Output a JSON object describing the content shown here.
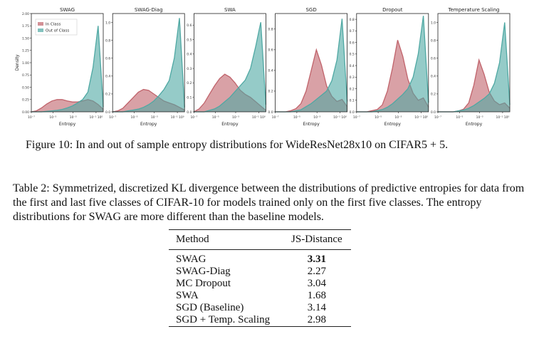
{
  "figure": {
    "caption": "Figure 10: In and out of sample entropy distributions for WideResNet28x10 on CIFAR5 + 5.",
    "colors": {
      "in_class": "#c0636b",
      "out_of_class": "#4fa8a3"
    },
    "legend": {
      "in_class": "In Class",
      "out_of_class": "Out of Class"
    },
    "ylabel": "Density",
    "xlabel": "Entropy",
    "x_ticks": [
      "10⁻⁷",
      "10⁻⁵",
      "10⁻³",
      "10⁻¹ 10⁰"
    ]
  },
  "chart_data": [
    {
      "type": "area",
      "title": "SWAG",
      "ylim": [
        0,
        2.0
      ],
      "y_ticks": [
        "0.00",
        "0.25",
        "0.50",
        "0.75",
        "1.00",
        "1.25",
        "1.50",
        "1.75",
        "2.00"
      ],
      "x": [
        0,
        1,
        2,
        3,
        4,
        5,
        6,
        7,
        8,
        9,
        10,
        11,
        12,
        13,
        14
      ],
      "series": [
        {
          "name": "In Class",
          "values": [
            0.0,
            0.02,
            0.08,
            0.16,
            0.22,
            0.25,
            0.25,
            0.22,
            0.2,
            0.2,
            0.22,
            0.25,
            0.22,
            0.15,
            0.05
          ]
        },
        {
          "name": "Out of Class",
          "values": [
            0.0,
            0.0,
            0.0,
            0.01,
            0.02,
            0.03,
            0.05,
            0.08,
            0.12,
            0.18,
            0.25,
            0.4,
            0.9,
            1.75,
            0.1
          ]
        }
      ]
    },
    {
      "type": "area",
      "title": "SWAG-Diag",
      "ylim": [
        0,
        1.1
      ],
      "y_ticks": [
        "0.0",
        "0.2",
        "0.4",
        "0.6",
        "0.8",
        "1.0"
      ],
      "x": [
        0,
        1,
        2,
        3,
        4,
        5,
        6,
        7,
        8,
        9,
        10,
        11,
        12,
        13,
        14
      ],
      "series": [
        {
          "name": "In Class",
          "values": [
            0.0,
            0.01,
            0.04,
            0.1,
            0.16,
            0.22,
            0.25,
            0.24,
            0.2,
            0.16,
            0.12,
            0.1,
            0.08,
            0.05,
            0.02
          ]
        },
        {
          "name": "Out of Class",
          "values": [
            0.0,
            0.0,
            0.0,
            0.01,
            0.02,
            0.03,
            0.05,
            0.08,
            0.12,
            0.18,
            0.25,
            0.35,
            0.6,
            1.05,
            0.05
          ]
        }
      ]
    },
    {
      "type": "area",
      "title": "SWA",
      "ylim": [
        0,
        0.68
      ],
      "y_ticks": [
        "0.0",
        "0.1",
        "0.2",
        "0.3",
        "0.4",
        "0.5",
        "0.6"
      ],
      "x": [
        0,
        1,
        2,
        3,
        4,
        5,
        6,
        7,
        8,
        9,
        10,
        11,
        12,
        13,
        14
      ],
      "series": [
        {
          "name": "In Class",
          "values": [
            0.0,
            0.02,
            0.06,
            0.12,
            0.18,
            0.23,
            0.26,
            0.24,
            0.2,
            0.15,
            0.12,
            0.1,
            0.07,
            0.04,
            0.01
          ]
        },
        {
          "name": "Out of Class",
          "values": [
            0.0,
            0.0,
            0.0,
            0.01,
            0.02,
            0.04,
            0.07,
            0.1,
            0.14,
            0.18,
            0.22,
            0.3,
            0.45,
            0.62,
            0.05
          ]
        }
      ]
    },
    {
      "type": "area",
      "title": "SGD",
      "ylim": [
        0,
        0.95
      ],
      "y_ticks": [
        "0.0",
        "0.2",
        "0.4",
        "0.6",
        "0.8"
      ],
      "x": [
        0,
        1,
        2,
        3,
        4,
        5,
        6,
        7,
        8,
        9,
        10,
        11,
        12,
        13,
        14
      ],
      "series": [
        {
          "name": "In Class",
          "values": [
            0.0,
            0.0,
            0.0,
            0.01,
            0.03,
            0.08,
            0.2,
            0.4,
            0.6,
            0.45,
            0.25,
            0.15,
            0.1,
            0.12,
            0.05
          ]
        },
        {
          "name": "Out of Class",
          "values": [
            0.0,
            0.0,
            0.0,
            0.0,
            0.01,
            0.02,
            0.05,
            0.08,
            0.12,
            0.16,
            0.2,
            0.3,
            0.5,
            0.9,
            0.1
          ]
        }
      ]
    },
    {
      "type": "area",
      "title": "Dropout",
      "ylim": [
        0,
        0.85
      ],
      "y_ticks": [
        "0.0",
        "0.1",
        "0.2",
        "0.3",
        "0.4",
        "0.5",
        "0.6",
        "0.7",
        "0.8"
      ],
      "x": [
        0,
        1,
        2,
        3,
        4,
        5,
        6,
        7,
        8,
        9,
        10,
        11,
        12,
        13,
        14
      ],
      "series": [
        {
          "name": "In Class",
          "values": [
            0.0,
            0.0,
            0.0,
            0.01,
            0.02,
            0.06,
            0.18,
            0.38,
            0.62,
            0.48,
            0.28,
            0.16,
            0.1,
            0.12,
            0.04
          ]
        },
        {
          "name": "Out of Class",
          "values": [
            0.0,
            0.0,
            0.0,
            0.0,
            0.01,
            0.02,
            0.04,
            0.07,
            0.11,
            0.15,
            0.2,
            0.3,
            0.5,
            0.83,
            0.08
          ]
        }
      ]
    },
    {
      "type": "area",
      "title": "Temperature Scaling",
      "ylim": [
        0,
        1.1
      ],
      "y_ticks": [
        "0.0",
        "0.2",
        "0.4",
        "0.6",
        "0.8",
        "1.0"
      ],
      "x": [
        0,
        1,
        2,
        3,
        4,
        5,
        6,
        7,
        8,
        9,
        10,
        11,
        12,
        13,
        14
      ],
      "series": [
        {
          "name": "In Class",
          "values": [
            0.0,
            0.0,
            0.0,
            0.0,
            0.01,
            0.03,
            0.1,
            0.3,
            0.58,
            0.42,
            0.22,
            0.12,
            0.08,
            0.1,
            0.04
          ]
        },
        {
          "name": "Out of Class",
          "values": [
            0.0,
            0.0,
            0.0,
            0.0,
            0.01,
            0.02,
            0.04,
            0.07,
            0.11,
            0.15,
            0.2,
            0.32,
            0.55,
            1.0,
            0.08
          ]
        }
      ]
    }
  ],
  "table_caption": "Table 2: Symmetrized, discretized KL divergence between the distributions of predictive entropies for data from the first and last five classes of CIFAR-10 for models trained only on the first five classes. The entropy distributions for SWAG are more different than the baseline models.",
  "table": {
    "headers": [
      "Method",
      "JS-Distance"
    ],
    "rows": [
      {
        "method": "SWAG",
        "value": "3.31"
      },
      {
        "method": "SWAG-Diag",
        "value": "2.27"
      },
      {
        "method": "MC Dropout",
        "value": "3.04"
      },
      {
        "method": "SWA",
        "value": "1.68"
      },
      {
        "method": "SGD (Baseline)",
        "value": "3.14"
      },
      {
        "method": "SGD + Temp. Scaling",
        "value": "2.98"
      }
    ]
  }
}
